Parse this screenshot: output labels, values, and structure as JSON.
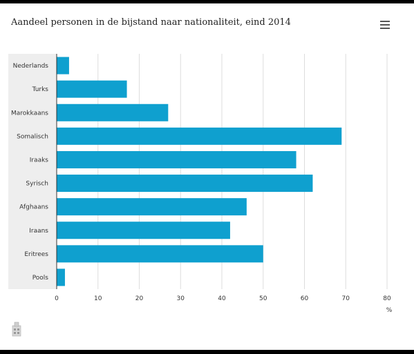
{
  "title": "Aandeel personen in de bijstand naar nationaliteit, eind 2014",
  "icons": {
    "menu": "hamburger-menu-icon",
    "logo": "cbs-logo-icon"
  },
  "colors": {
    "bar": "#0fa0cf",
    "category_band": "#eeeeee",
    "grid": "#dddddd"
  },
  "chart_data": {
    "type": "bar",
    "orientation": "horizontal",
    "title": "Aandeel personen in de bijstand naar nationaliteit, eind 2014",
    "categories": [
      "Nederlands",
      "Turks",
      "Marokkaans",
      "Somalisch",
      "Iraaks",
      "Syrisch",
      "Afghaans",
      "Iraans",
      "Eritrees",
      "Pools"
    ],
    "values": [
      3,
      17,
      27,
      69,
      58,
      62,
      46,
      42,
      50,
      2
    ],
    "xlim": [
      0,
      80
    ],
    "xticks": [
      0,
      10,
      20,
      30,
      40,
      50,
      60,
      70,
      80
    ],
    "xunit": "%",
    "grid": true,
    "legend": "none"
  }
}
